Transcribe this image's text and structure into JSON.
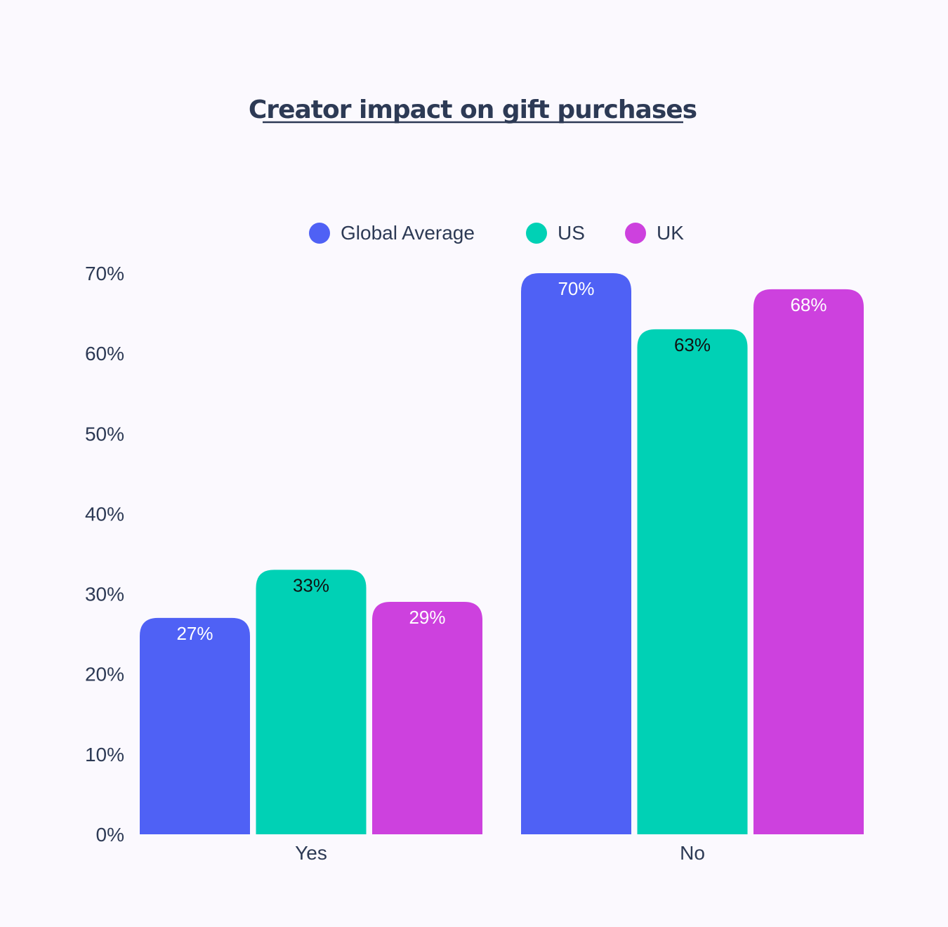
{
  "chart_data": {
    "type": "bar",
    "title": "Creator impact on gift purchases",
    "xlabel": "",
    "ylabel": "",
    "categories": [
      "Yes",
      "No"
    ],
    "series": [
      {
        "name": "Global Average",
        "color": "#4f61f5",
        "label_color": "#ffffff",
        "values": [
          27,
          70
        ]
      },
      {
        "name": "US",
        "color": "#00d1b5",
        "label_color": "#111111",
        "values": [
          33,
          63
        ]
      },
      {
        "name": "UK",
        "color": "#cd41de",
        "label_color": "#ffffff",
        "values": [
          29,
          68
        ]
      }
    ],
    "value_labels": [
      [
        "27%",
        "70%"
      ],
      [
        "33%",
        "63%"
      ],
      [
        "29%",
        "68%"
      ]
    ],
    "ylim": [
      0,
      70
    ],
    "yticks": [
      0,
      10,
      20,
      30,
      40,
      50,
      60,
      70
    ],
    "ytick_labels": [
      "0%",
      "10%",
      "20%",
      "30%",
      "40%",
      "50%",
      "60%",
      "70%"
    ],
    "grid": false,
    "legend_position": "top-center"
  }
}
